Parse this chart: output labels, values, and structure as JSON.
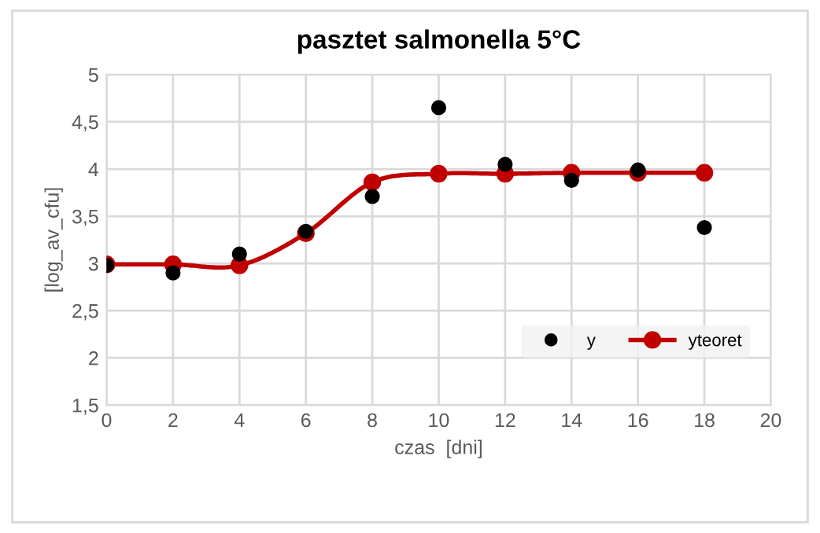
{
  "chart_data": {
    "type": "scatter",
    "title": "pasztet salmonella 5°C",
    "xlabel": "czas  [dni]",
    "ylabel": "[log_av_cfu]",
    "x": [
      0,
      2,
      4,
      6,
      8,
      10,
      12,
      14,
      16,
      18
    ],
    "series": [
      {
        "name": "y",
        "color": "#000000",
        "marker": "circle",
        "values": [
          2.98,
          2.9,
          3.1,
          3.34,
          3.71,
          4.65,
          4.05,
          3.88,
          3.99,
          3.38
        ]
      },
      {
        "name": "yteoret",
        "type": "line",
        "color": "#c00000",
        "marker": "circle",
        "line_style": "solid",
        "values": [
          2.99,
          2.99,
          2.98,
          3.32,
          3.86,
          3.95,
          3.95,
          3.96,
          3.96,
          3.96
        ]
      }
    ],
    "xlim": [
      0,
      20
    ],
    "xticks": [
      0,
      2,
      4,
      6,
      8,
      10,
      12,
      14,
      16,
      18,
      20
    ],
    "ylim": [
      1.5,
      5
    ],
    "yticks": [
      {
        "value": 1.5,
        "label": "1,5"
      },
      2,
      {
        "value": 2.5,
        "label": "2,5"
      },
      3,
      {
        "value": 3.5,
        "label": "3,5"
      },
      4,
      {
        "value": 4.5,
        "label": "4,5"
      },
      5
    ],
    "grid": true,
    "legend": "bottom right"
  }
}
